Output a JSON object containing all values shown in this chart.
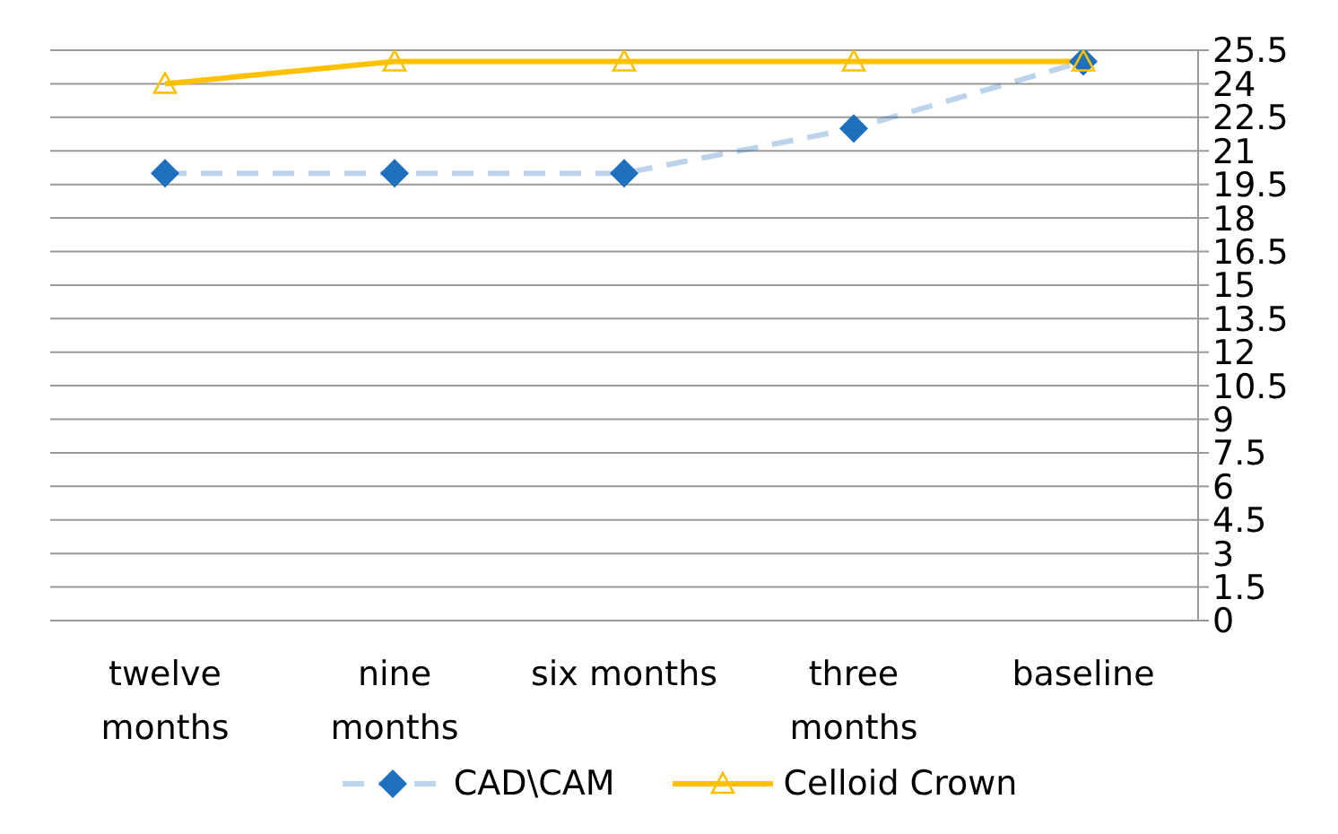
{
  "chart_data": {
    "type": "line",
    "categories": [
      "twelve months",
      "nine months",
      "six months",
      "three months",
      "baseline"
    ],
    "series": [
      {
        "name": "CAD\\CAM",
        "color": "#1f6fbf",
        "values": [
          20,
          20,
          20,
          22,
          25
        ],
        "marker": "diamond",
        "line_style": "dashed"
      },
      {
        "name": "Celloid Crown",
        "color": "#ffc000",
        "values": [
          24,
          25,
          25,
          25,
          25
        ],
        "marker": "triangle",
        "line_style": "solid"
      }
    ],
    "ylim": [
      0,
      25.5
    ],
    "yticks": [
      0,
      1.5,
      3,
      4.5,
      6,
      7.5,
      9,
      10.5,
      12,
      13.5,
      15,
      16.5,
      18,
      19.5,
      21,
      22.5,
      24,
      25.5
    ],
    "grid": "y",
    "legend": "bottom"
  }
}
